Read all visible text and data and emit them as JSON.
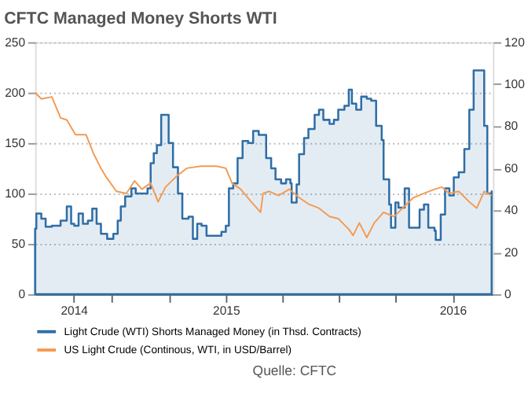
{
  "chart_data": {
    "type": "line",
    "title": "CFTC Managed Money Shorts WTI",
    "annotations": [
      "Quelle: CFTC"
    ],
    "xlim": [
      "2014-02-28",
      "2016-03-06"
    ],
    "xticks": [
      {
        "value": "2014-05-01",
        "label": "2014"
      },
      {
        "value": "2014-07-01",
        "label": null
      },
      {
        "value": "2014-10-01",
        "label": null
      },
      {
        "value": "2015-01-01",
        "label": "2015"
      },
      {
        "value": "2015-04-01",
        "label": null
      },
      {
        "value": "2015-07-01",
        "label": null
      },
      {
        "value": "2015-10-01",
        "label": null
      },
      {
        "value": "2016-01-01",
        "label": "2016"
      }
    ],
    "ylim": [
      0,
      250
    ],
    "yticks": [
      0,
      50,
      100,
      150,
      200,
      250
    ],
    "y2lim": [
      0,
      120
    ],
    "y2ticks": [
      0,
      20,
      40,
      60,
      80,
      100,
      120
    ],
    "grid": "y",
    "legend": "bottom left",
    "series": [
      {
        "name": "Light Crude (WTI) Shorts Managed Money (in Thsd. Contracts)",
        "type": "area",
        "color": "#2f6ea6",
        "x": [
          "2014-02-28",
          "2014-03-02",
          "2014-03-10",
          "2014-03-17",
          "2014-03-27",
          "2014-04-10",
          "2014-04-20",
          "2014-04-27",
          "2014-05-02",
          "2014-05-09",
          "2014-05-16",
          "2014-05-24",
          "2014-05-31",
          "2014-06-07",
          "2014-06-14",
          "2014-06-24",
          "2014-07-04",
          "2014-07-11",
          "2014-07-16",
          "2014-07-23",
          "2014-08-02",
          "2014-08-09",
          "2014-08-21",
          "2014-08-28",
          "2014-09-02",
          "2014-09-07",
          "2014-09-12",
          "2014-09-19",
          "2014-09-29",
          "2014-10-01",
          "2014-10-08",
          "2014-10-16",
          "2014-10-23",
          "2014-11-02",
          "2014-11-09",
          "2014-11-16",
          "2014-11-23",
          "2014-12-01",
          "2014-12-17",
          "2014-12-25",
          "2015-01-01",
          "2015-01-06",
          "2015-01-13",
          "2015-01-20",
          "2015-01-28",
          "2015-02-06",
          "2015-02-14",
          "2015-02-23",
          "2015-03-07",
          "2015-03-15",
          "2015-03-22",
          "2015-03-31",
          "2015-04-08",
          "2015-04-15",
          "2015-04-17",
          "2015-04-25",
          "2015-04-29",
          "2015-05-07",
          "2015-05-14",
          "2015-05-24",
          "2015-05-31",
          "2015-06-07",
          "2015-06-17",
          "2015-06-24",
          "2015-07-01",
          "2015-07-11",
          "2015-07-18",
          "2015-07-21",
          "2015-07-23",
          "2015-07-30",
          "2015-08-07",
          "2015-08-16",
          "2015-08-23",
          "2015-08-31",
          "2015-09-09",
          "2015-09-12",
          "2015-09-21",
          "2015-09-24",
          "2015-10-01",
          "2015-10-06",
          "2015-10-16",
          "2015-10-23",
          "2015-10-30",
          "2015-11-09",
          "2015-11-16",
          "2015-11-23",
          "2015-12-03",
          "2015-12-05",
          "2015-12-13",
          "2015-12-20",
          "2015-12-27",
          "2016-01-03",
          "2016-01-11",
          "2016-01-20",
          "2016-01-28",
          "2016-02-04",
          "2016-02-16",
          "2016-02-21",
          "2016-02-26",
          "2016-03-04"
        ],
        "values": [
          65,
          80,
          75,
          67,
          68,
          73,
          87,
          70,
          68,
          80,
          70,
          73,
          85,
          70,
          60,
          55,
          60,
          73,
          87,
          97,
          105,
          100,
          100,
          105,
          130,
          140,
          148,
          178,
          178,
          150,
          126,
          100,
          75,
          77,
          55,
          70,
          68,
          58,
          58,
          62,
          68,
          105,
          110,
          135,
          152,
          150,
          162,
          158,
          135,
          125,
          114,
          110,
          114,
          110,
          91,
          109,
          139,
          155,
          164,
          178,
          183,
          173,
          169,
          173,
          183,
          187,
          203,
          203,
          189,
          183,
          196,
          194,
          192,
          167,
          153,
          114,
          89,
          66,
          91,
          86,
          105,
          66,
          66,
          84,
          89,
          66,
          63,
          54,
          79,
          105,
          98,
          116,
          121,
          144,
          183,
          222,
          222,
          167,
          100,
          102
        ]
      },
      {
        "name": "US Light Crude (Continous, WTI, in USD/Barrel)",
        "axis": "y2",
        "color": "#f39a52",
        "x": [
          "2014-02-28",
          "2014-03-10",
          "2014-03-27",
          "2014-04-10",
          "2014-04-20",
          "2014-05-04",
          "2014-05-21",
          "2014-06-02",
          "2014-06-14",
          "2014-06-22",
          "2014-07-09",
          "2014-07-25",
          "2014-08-07",
          "2014-08-19",
          "2014-09-02",
          "2014-09-14",
          "2014-09-26",
          "2014-10-13",
          "2014-10-30",
          "2014-11-23",
          "2014-12-17",
          "2015-01-01",
          "2015-01-11",
          "2015-01-25",
          "2015-02-11",
          "2015-02-26",
          "2015-03-02",
          "2015-03-12",
          "2015-03-27",
          "2015-04-13",
          "2015-04-29",
          "2015-05-14",
          "2015-05-31",
          "2015-06-17",
          "2015-07-01",
          "2015-07-18",
          "2015-07-25",
          "2015-08-04",
          "2015-08-16",
          "2015-08-28",
          "2015-09-12",
          "2015-09-29",
          "2015-10-16",
          "2015-10-30",
          "2015-11-16",
          "2015-12-03",
          "2015-12-15",
          "2015-12-27",
          "2016-01-11",
          "2016-01-28",
          "2016-02-09",
          "2016-02-21",
          "2016-03-04"
        ],
        "values": [
          96,
          93,
          94,
          84,
          83,
          76,
          76,
          67,
          60,
          56,
          49,
          48,
          54,
          50,
          53,
          44,
          51,
          56,
          60,
          61,
          61,
          60,
          53,
          50,
          44,
          39,
          48,
          49,
          47,
          50,
          46,
          43,
          41,
          37,
          36,
          31,
          28,
          34,
          27,
          34,
          39,
          37,
          42,
          46,
          48,
          50,
          51,
          48,
          49,
          44,
          41,
          49,
          47
        ]
      }
    ]
  }
}
